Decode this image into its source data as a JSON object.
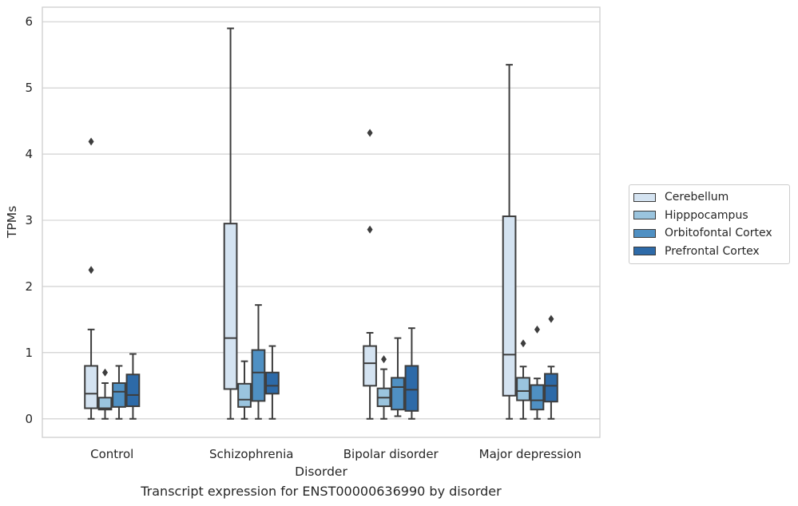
{
  "chart_data": {
    "type": "box",
    "xlabel": "Disorder",
    "ylabel": "TPMs",
    "ylim": [
      -0.28,
      6.22
    ],
    "yticks": [
      0,
      1,
      2,
      3,
      4,
      5,
      6
    ],
    "grid": true,
    "legend_position": "right",
    "categories": [
      "Control",
      "Schizophrenia",
      "Bipolar disorder",
      "Major depression"
    ],
    "series": [
      {
        "name": "Cerebellum",
        "color": "#d4e3f1",
        "boxes": [
          {
            "whisker_low": 0,
            "q1": 0.16,
            "median": 0.38,
            "q3": 0.8,
            "whisker_high": 1.35,
            "outliers": [
              2.25,
              4.19
            ]
          },
          {
            "whisker_low": 0,
            "q1": 0.45,
            "median": 1.22,
            "q3": 2.95,
            "whisker_high": 5.9,
            "outliers": []
          },
          {
            "whisker_low": 0,
            "q1": 0.5,
            "median": 0.84,
            "q3": 1.1,
            "whisker_high": 1.3,
            "outliers": [
              2.86,
              4.32
            ]
          },
          {
            "whisker_low": 0,
            "q1": 0.35,
            "median": 0.97,
            "q3": 3.06,
            "whisker_high": 5.35,
            "outliers": []
          }
        ]
      },
      {
        "name": "Hipppocampus",
        "color": "#9ac4de",
        "boxes": [
          {
            "whisker_low": 0,
            "q1": 0.14,
            "median": 0.16,
            "q3": 0.32,
            "whisker_high": 0.54,
            "outliers": [
              0.7
            ]
          },
          {
            "whisker_low": 0,
            "q1": 0.18,
            "median": 0.29,
            "q3": 0.53,
            "whisker_high": 0.87,
            "outliers": []
          },
          {
            "whisker_low": 0,
            "q1": 0.19,
            "median": 0.32,
            "q3": 0.46,
            "whisker_high": 0.75,
            "outliers": [
              0.9
            ]
          },
          {
            "whisker_low": 0,
            "q1": 0.28,
            "median": 0.42,
            "q3": 0.62,
            "whisker_high": 0.79,
            "outliers": [
              1.14
            ]
          }
        ]
      },
      {
        "name": "Orbitofontal Cortex",
        "color": "#4f90c3",
        "boxes": [
          {
            "whisker_low": 0,
            "q1": 0.18,
            "median": 0.41,
            "q3": 0.54,
            "whisker_high": 0.8,
            "outliers": []
          },
          {
            "whisker_low": 0,
            "q1": 0.27,
            "median": 0.7,
            "q3": 1.04,
            "whisker_high": 1.72,
            "outliers": []
          },
          {
            "whisker_low": 0.04,
            "q1": 0.14,
            "median": 0.48,
            "q3": 0.62,
            "whisker_high": 1.22,
            "outliers": []
          },
          {
            "whisker_low": 0,
            "q1": 0.14,
            "median": 0.28,
            "q3": 0.51,
            "whisker_high": 0.61,
            "outliers": [
              1.35
            ]
          }
        ]
      },
      {
        "name": "Prefrontal Cortex",
        "color": "#2d6aa8",
        "boxes": [
          {
            "whisker_low": 0,
            "q1": 0.19,
            "median": 0.36,
            "q3": 0.67,
            "whisker_high": 0.98,
            "outliers": []
          },
          {
            "whisker_low": 0,
            "q1": 0.38,
            "median": 0.5,
            "q3": 0.7,
            "whisker_high": 1.1,
            "outliers": []
          },
          {
            "whisker_low": 0,
            "q1": 0.12,
            "median": 0.44,
            "q3": 0.8,
            "whisker_high": 1.37,
            "outliers": []
          },
          {
            "whisker_low": 0,
            "q1": 0.26,
            "median": 0.5,
            "q3": 0.68,
            "whisker_high": 0.79,
            "outliers": [
              1.51
            ]
          }
        ]
      }
    ]
  },
  "caption": "Transcript expression for ENST00000636990 by disorder"
}
